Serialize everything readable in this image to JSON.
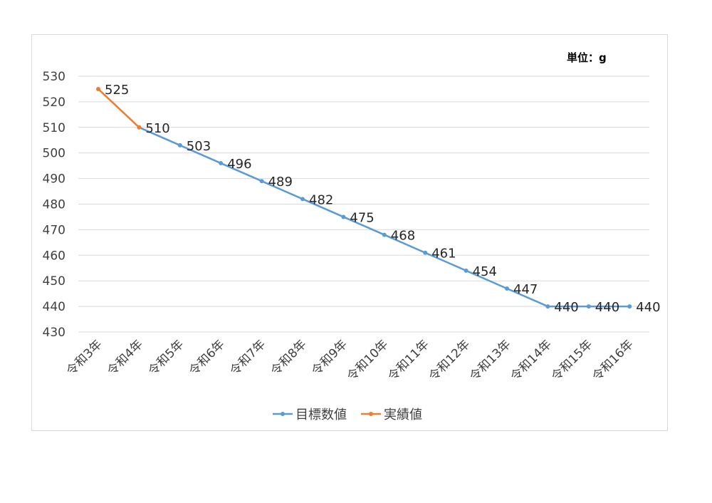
{
  "chart_data": {
    "type": "line",
    "unit_label": "単位：g",
    "categories": [
      "令和3年",
      "令和4年",
      "令和5年",
      "令和6年",
      "令和7年",
      "令和8年",
      "令和9年",
      "令和10年",
      "令和11年",
      "令和12年",
      "令和13年",
      "令和14年",
      "令和15年",
      "令和16年"
    ],
    "ylim": [
      430,
      530
    ],
    "yticks": [
      430,
      440,
      450,
      460,
      470,
      480,
      490,
      500,
      510,
      520,
      530
    ],
    "grid": true,
    "legend_position": "bottom",
    "series": [
      {
        "name": "目標数値",
        "color": "#5b9bd5",
        "values": [
          null,
          510,
          503,
          496,
          489,
          482,
          475,
          468,
          461,
          454,
          447,
          440,
          440,
          440
        ]
      },
      {
        "name": "実績値",
        "color": "#ed7d31",
        "values": [
          525,
          510,
          null,
          null,
          null,
          null,
          null,
          null,
          null,
          null,
          null,
          null,
          null,
          null
        ]
      }
    ]
  }
}
